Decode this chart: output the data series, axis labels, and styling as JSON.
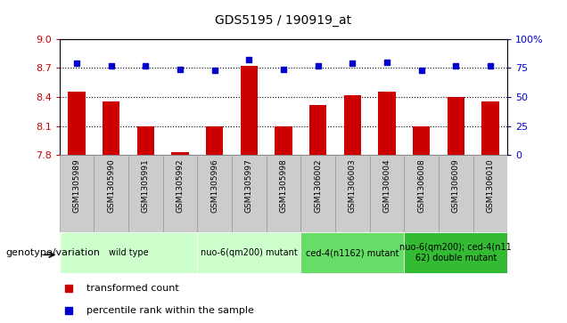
{
  "title": "GDS5195 / 190919_at",
  "samples": [
    "GSM1305989",
    "GSM1305990",
    "GSM1305991",
    "GSM1305992",
    "GSM1305996",
    "GSM1305997",
    "GSM1305998",
    "GSM1306002",
    "GSM1306003",
    "GSM1306004",
    "GSM1306008",
    "GSM1306009",
    "GSM1306010"
  ],
  "bar_values": [
    8.45,
    8.35,
    8.1,
    7.83,
    8.1,
    8.72,
    8.1,
    8.32,
    8.42,
    8.45,
    8.1,
    8.4,
    8.35
  ],
  "dot_values": [
    79,
    77,
    77,
    74,
    73,
    82,
    74,
    77,
    79,
    80,
    73,
    77,
    77
  ],
  "bar_color": "#cc0000",
  "dot_color": "#0000cc",
  "ylim_left": [
    7.8,
    9.0
  ],
  "ylim_right": [
    0,
    100
  ],
  "yticks_left": [
    7.8,
    8.1,
    8.4,
    8.7,
    9.0
  ],
  "yticks_right": [
    0,
    25,
    50,
    75,
    100
  ],
  "hlines": [
    8.7,
    8.4,
    8.1
  ],
  "groups": [
    {
      "label": "wild type",
      "start": 0,
      "end": 4,
      "color": "#ccffcc"
    },
    {
      "label": "nuo-6(qm200) mutant",
      "start": 4,
      "end": 7,
      "color": "#ccffcc"
    },
    {
      "label": "ced-4(n1162) mutant",
      "start": 7,
      "end": 10,
      "color": "#66dd66"
    },
    {
      "label": "nuo-6(qm200); ced-4(n11\n62) double mutant",
      "start": 10,
      "end": 13,
      "color": "#33bb33"
    }
  ],
  "xlabel_label": "genotype/variation",
  "legend_bar": "transformed count",
  "legend_dot": "percentile rank within the sample",
  "plot_bg": "#ffffff",
  "tick_bg": "#cccccc",
  "fig_bg": "#ffffff"
}
